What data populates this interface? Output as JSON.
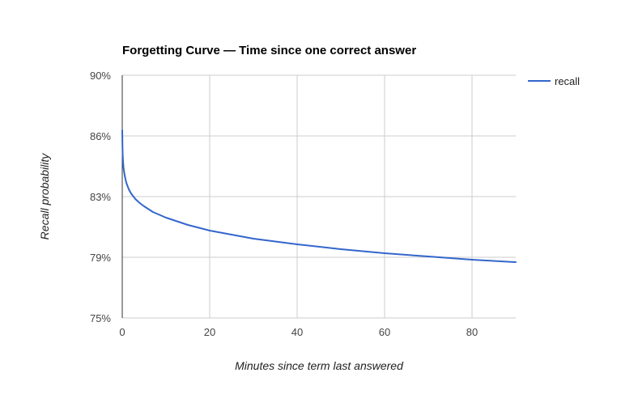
{
  "chart_data": {
    "type": "line",
    "title": "Forgetting Curve — Time since one correct answer",
    "xlabel": "Minutes since term last answered",
    "ylabel": "Recall probability",
    "xlim": [
      0,
      90
    ],
    "ylim": [
      75,
      90
    ],
    "x_ticks": [
      0,
      20,
      40,
      60,
      80
    ],
    "x_tick_labels": [
      "0",
      "20",
      "40",
      "60",
      "80"
    ],
    "y_ticks": [
      75,
      78.75,
      82.5,
      86.25,
      90
    ],
    "y_tick_labels": [
      "75%",
      "79%",
      "83%",
      "86%",
      "90%"
    ],
    "grid": true,
    "legend_position": "right",
    "series": [
      {
        "name": "recall",
        "color": "#3366cc",
        "x": [
          0,
          0.05,
          0.1,
          0.2,
          0.3,
          0.5,
          0.75,
          1,
          1.5,
          2,
          3,
          4,
          5,
          7,
          10,
          15,
          20,
          30,
          40,
          50,
          60,
          70,
          80,
          90
        ],
        "y": [
          86.6,
          85.6,
          85.1,
          84.6,
          84.25,
          83.9,
          83.55,
          83.3,
          82.95,
          82.7,
          82.35,
          82.1,
          81.9,
          81.55,
          81.2,
          80.75,
          80.4,
          79.9,
          79.55,
          79.25,
          79.0,
          78.8,
          78.6,
          78.45
        ]
      }
    ]
  },
  "legend": {
    "entries": [
      {
        "label": "recall",
        "color": "#3366cc"
      }
    ]
  }
}
